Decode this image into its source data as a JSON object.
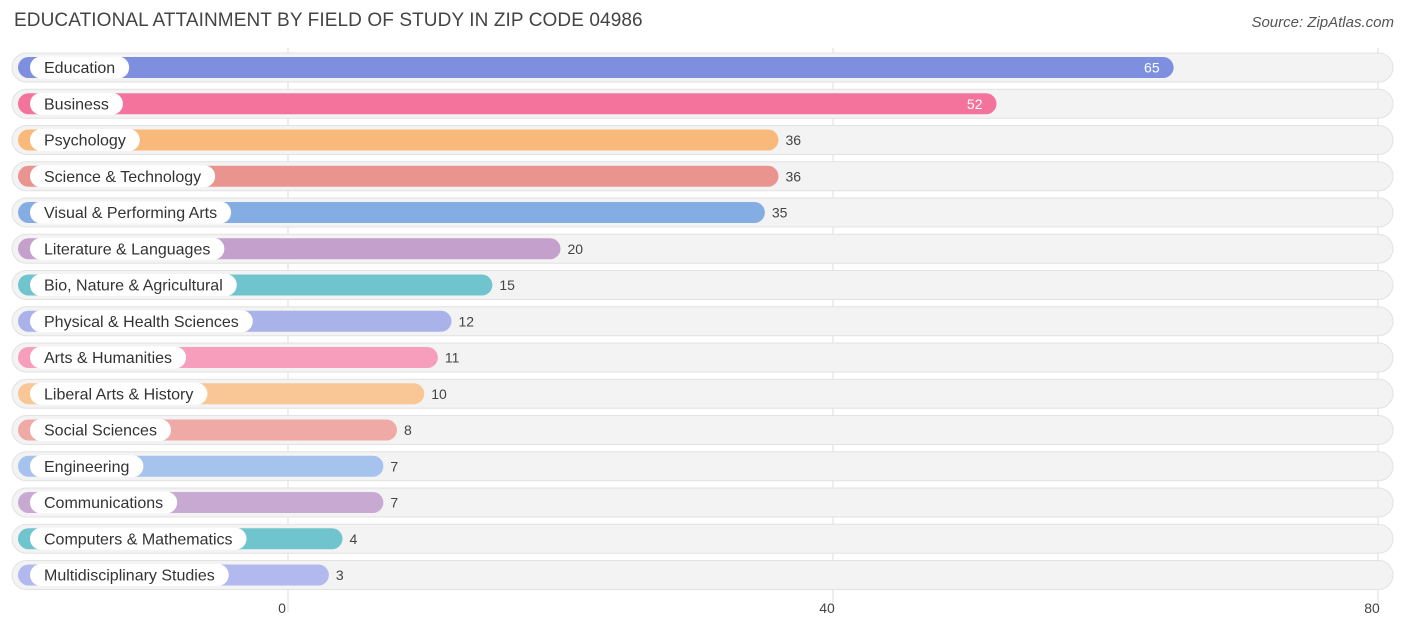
{
  "title": "EDUCATIONAL ATTAINMENT BY FIELD OF STUDY IN ZIP CODE 04986",
  "source": "Source: ZipAtlas.com",
  "chart_data": {
    "type": "bar",
    "orientation": "horizontal",
    "title": "EDUCATIONAL ATTAINMENT BY FIELD OF STUDY IN ZIP CODE 04986",
    "categories": [
      "Education",
      "Business",
      "Psychology",
      "Science & Technology",
      "Visual & Performing Arts",
      "Literature & Languages",
      "Bio, Nature & Agricultural",
      "Physical & Health Sciences",
      "Arts & Humanities",
      "Liberal Arts & History",
      "Social Sciences",
      "Engineering",
      "Communications",
      "Computers & Mathematics",
      "Multidisciplinary Studies"
    ],
    "values": [
      65,
      52,
      36,
      36,
      35,
      20,
      15,
      12,
      11,
      10,
      8,
      7,
      7,
      4,
      3
    ],
    "colors": [
      "#7f8fe0",
      "#f4739d",
      "#f9b97a",
      "#ea9490",
      "#84aee3",
      "#c4a0cc",
      "#6fc4cd",
      "#aab2ea",
      "#f69ebb",
      "#f9c796",
      "#f0aaa5",
      "#a5c3ec",
      "#c7a9d2",
      "#6fc4cd",
      "#b2b9ef"
    ],
    "xticks": [
      0,
      40,
      80
    ],
    "xlim": [
      0,
      80
    ],
    "grid": true,
    "xlabel": "",
    "ylabel": ""
  }
}
